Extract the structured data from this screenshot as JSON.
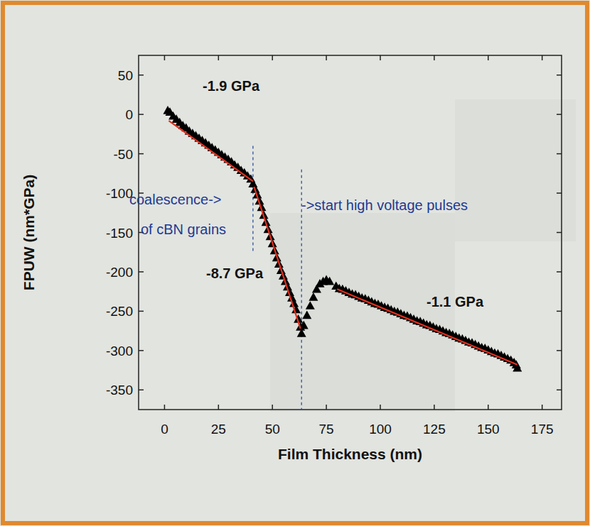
{
  "chart_data": {
    "type": "scatter",
    "marker": "triangle",
    "color": "#000000",
    "x_label": "Film Thickness (nm)",
    "y_label": "FPUW (nm*GPa)",
    "xlim": [
      -12,
      184
    ],
    "ylim": [
      -375,
      75
    ],
    "xticks": [
      0,
      25,
      50,
      75,
      100,
      125,
      150,
      175
    ],
    "yticks": [
      50,
      0,
      -50,
      -100,
      -150,
      -200,
      -250,
      -300,
      -350
    ],
    "x": [
      1.5,
      2.5,
      4,
      5.5,
      7,
      8.5,
      10,
      11.5,
      13,
      14.5,
      16,
      17.5,
      19,
      20.5,
      22,
      23.5,
      25,
      26.5,
      28,
      29.5,
      31,
      32.5,
      34,
      35.5,
      37,
      38.5,
      40,
      41,
      42,
      43,
      44,
      45,
      46,
      47,
      48,
      49,
      50,
      51,
      52,
      53,
      54,
      55,
      56,
      57,
      58,
      59,
      60,
      61,
      62,
      63,
      63.5,
      64.5,
      66,
      67.5,
      69,
      70.5,
      72,
      73.5,
      75,
      76.5,
      79.5,
      81,
      82.5,
      84,
      85.5,
      87,
      88.5,
      90,
      91.5,
      93,
      94.5,
      96,
      97.5,
      99,
      100.5,
      102,
      103.5,
      105,
      106.5,
      108,
      109.5,
      111,
      112.5,
      114,
      115.5,
      117,
      118.5,
      120,
      121.5,
      123,
      124.5,
      126,
      127.5,
      129,
      130.5,
      132,
      133.5,
      135,
      136.5,
      138,
      139.5,
      141,
      142.5,
      144,
      145.5,
      147,
      148.5,
      150,
      151.5,
      153,
      154.5,
      156,
      157.5,
      159,
      160.5,
      162,
      163,
      163.5
    ],
    "values": [
      5,
      3,
      -2,
      -6,
      -10,
      -14,
      -17,
      -21,
      -24,
      -27,
      -30,
      -33,
      -36,
      -39,
      -42,
      -45,
      -48,
      -51,
      -54,
      -57,
      -60,
      -64,
      -67,
      -71,
      -74,
      -78,
      -82,
      -88,
      -95,
      -102,
      -110,
      -118,
      -128,
      -137,
      -146,
      -155,
      -164,
      -173,
      -182,
      -190,
      -198,
      -205,
      -212,
      -219,
      -226,
      -233,
      -240,
      -248,
      -260,
      -270,
      -278,
      -268,
      -255,
      -243,
      -232,
      -222,
      -215,
      -212,
      -210,
      -212,
      -218,
      -221,
      -222,
      -224,
      -226,
      -228,
      -229,
      -231,
      -233,
      -234,
      -236,
      -238,
      -240,
      -241,
      -243,
      -245,
      -246,
      -248,
      -250,
      -251,
      -253,
      -255,
      -256,
      -258,
      -260,
      -262,
      -263,
      -265,
      -267,
      -268,
      -270,
      -272,
      -273,
      -275,
      -277,
      -278,
      -280,
      -282,
      -284,
      -285,
      -287,
      -289,
      -290,
      -292,
      -294,
      -296,
      -297,
      -299,
      -301,
      -303,
      -304,
      -306,
      -308,
      -310,
      -312,
      -315,
      -318,
      -322
    ],
    "fits": [
      {
        "x": [
          2,
          41
        ],
        "values": [
          -8,
          -85
        ],
        "color": "#e0301e",
        "label": "-1.9 GPa"
      },
      {
        "x": [
          41.5,
          63
        ],
        "values": [
          -92,
          -272
        ],
        "color": "#e0301e",
        "label": "-8.7 GPa"
      },
      {
        "x": [
          80,
          163.5
        ],
        "values": [
          -222,
          -318
        ],
        "color": "#e0301e",
        "label": "-1.1 GPa"
      }
    ],
    "vlines": [
      {
        "x": 41,
        "y": [
          -40,
          -175
        ],
        "color": "#2a4fa0"
      },
      {
        "x": 63.5,
        "y": [
          -70,
          -375
        ],
        "color": "#2a4fa0"
      }
    ],
    "annotations": [
      {
        "lines": [
          "coalescence->",
          "of cBN grains"
        ],
        "color": "#1f3a93"
      },
      {
        "lines": [
          "->start high voltage pulses"
        ],
        "color": "#1f3a93"
      }
    ]
  }
}
